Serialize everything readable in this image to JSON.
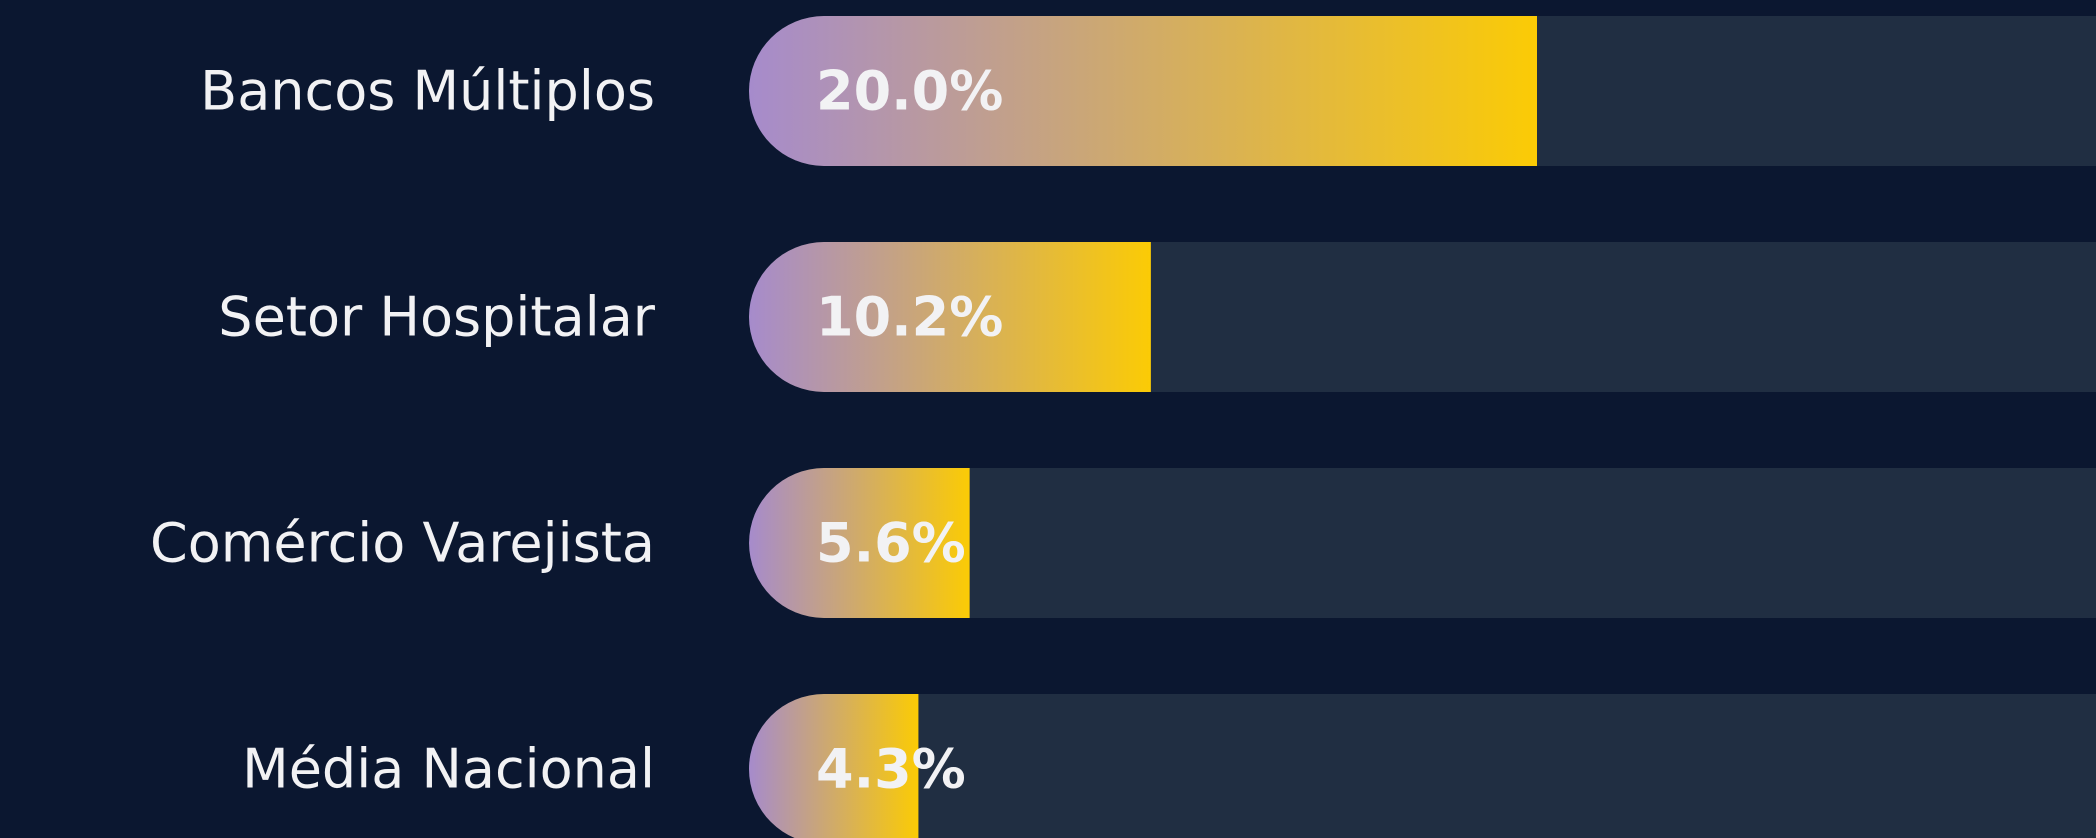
{
  "chart_data": {
    "type": "bar",
    "orientation": "horizontal",
    "categories": [
      "Bancos Múltiplos",
      "Setor Hospitalar",
      "Comércio Varejista",
      "Média Nacional"
    ],
    "values": [
      20.0,
      10.2,
      5.6,
      4.3
    ],
    "value_labels": [
      "20.0%",
      "10.2%",
      "5.6%",
      "4.3%"
    ],
    "gradient": [
      "#a68bcc",
      "#fbcb05"
    ],
    "track_color": "#202e42",
    "background": "#0b1730"
  }
}
